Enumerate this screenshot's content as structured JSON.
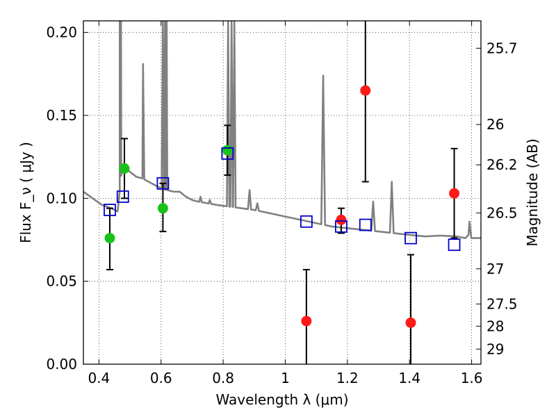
{
  "chart_data": {
    "type": "scatter",
    "xlabel": "Wavelength  λ (μm)",
    "ylabel": "Flux  F_ν  ( μJy )",
    "y2label": "Magnitude (AB)",
    "xlim": [
      0.35,
      1.63
    ],
    "ylim": [
      0.0,
      0.207
    ],
    "grid": true,
    "x_ticks": [
      0.4,
      0.6,
      0.8,
      1.0,
      1.2,
      1.4,
      1.6
    ],
    "x_tick_labels": [
      "0.4",
      "0.6",
      "0.8",
      "1",
      "1.2",
      "1.4",
      "1.6"
    ],
    "y_ticks": [
      0.0,
      0.05,
      0.1,
      0.15,
      0.2
    ],
    "y_tick_labels": [
      "0.00",
      "0.05",
      "0.10",
      "0.15",
      "0.20"
    ],
    "mag_ticks": [
      {
        "flux": 0.1905,
        "label": "25.7"
      },
      {
        "flux": 0.1445,
        "label": "26"
      },
      {
        "flux": 0.1202,
        "label": "26.2"
      },
      {
        "flux": 0.0912,
        "label": "26.5"
      },
      {
        "flux": 0.0575,
        "label": "27"
      },
      {
        "flux": 0.0363,
        "label": "27.5"
      },
      {
        "flux": 0.0229,
        "label": "28"
      },
      {
        "flux": 0.0091,
        "label": "29"
      }
    ],
    "series": [
      {
        "name": "green detections",
        "color": "#19c219",
        "marker": "circle",
        "points": [
          {
            "x": 0.435,
            "y": 0.076,
            "ylo": 0.057,
            "yhi": 0.094
          },
          {
            "x": 0.482,
            "y": 0.118,
            "ylo": 0.1,
            "yhi": 0.136
          },
          {
            "x": 0.606,
            "y": 0.094,
            "ylo": 0.08,
            "yhi": 0.109
          },
          {
            "x": 0.814,
            "y": 0.129,
            "ylo": 0.114,
            "yhi": 0.144
          }
        ]
      },
      {
        "name": "red detections",
        "color": "#ff1a1a",
        "marker": "circle",
        "points": [
          {
            "x": 1.068,
            "y": 0.026,
            "ylo": 0.0,
            "yhi": 0.057
          },
          {
            "x": 1.18,
            "y": 0.087,
            "ylo": 0.079,
            "yhi": 0.094
          },
          {
            "x": 1.258,
            "y": 0.165,
            "ylo": 0.11,
            "yhi": 0.207
          },
          {
            "x": 1.404,
            "y": 0.025,
            "ylo": 0.0,
            "yhi": 0.066
          },
          {
            "x": 1.544,
            "y": 0.103,
            "ylo": 0.076,
            "yhi": 0.13
          }
        ]
      },
      {
        "name": "model photometry",
        "color": "#0000cc",
        "marker": "open-square",
        "points": [
          {
            "x": 0.435,
            "y": 0.093
          },
          {
            "x": 0.477,
            "y": 0.101
          },
          {
            "x": 0.606,
            "y": 0.109
          },
          {
            "x": 0.814,
            "y": 0.127
          },
          {
            "x": 1.068,
            "y": 0.086
          },
          {
            "x": 1.18,
            "y": 0.083
          },
          {
            "x": 1.258,
            "y": 0.084
          },
          {
            "x": 1.404,
            "y": 0.076
          },
          {
            "x": 1.544,
            "y": 0.072
          }
        ]
      }
    ],
    "spectrum": {
      "name": "model SED",
      "color": "#808080",
      "continuum": [
        [
          0.35,
          0.104
        ],
        [
          0.38,
          0.1
        ],
        [
          0.41,
          0.096
        ],
        [
          0.44,
          0.094
        ],
        [
          0.46,
          0.092
        ],
        [
          0.475,
          0.119
        ],
        [
          0.5,
          0.116
        ],
        [
          0.52,
          0.113
        ],
        [
          0.54,
          0.112
        ],
        [
          0.56,
          0.11
        ],
        [
          0.58,
          0.108
        ],
        [
          0.6,
          0.106
        ],
        [
          0.62,
          0.105
        ],
        [
          0.64,
          0.104
        ],
        [
          0.66,
          0.104
        ],
        [
          0.68,
          0.101
        ],
        [
          0.7,
          0.099
        ],
        [
          0.72,
          0.098
        ],
        [
          0.75,
          0.097
        ],
        [
          0.78,
          0.096
        ],
        [
          0.82,
          0.095
        ],
        [
          0.86,
          0.094
        ],
        [
          0.9,
          0.093
        ],
        [
          0.95,
          0.091
        ],
        [
          1.0,
          0.089
        ],
        [
          1.05,
          0.087
        ],
        [
          1.1,
          0.085
        ],
        [
          1.15,
          0.083
        ],
        [
          1.2,
          0.082
        ],
        [
          1.25,
          0.081
        ],
        [
          1.3,
          0.08
        ],
        [
          1.35,
          0.079
        ],
        [
          1.4,
          0.078
        ],
        [
          1.45,
          0.077
        ],
        [
          1.5,
          0.0775
        ],
        [
          1.55,
          0.077
        ],
        [
          1.58,
          0.076
        ],
        [
          1.59,
          0.078
        ],
        [
          1.6,
          0.076
        ],
        [
          1.63,
          0.076
        ]
      ],
      "lines": [
        {
          "x": 0.467,
          "y": 0.207,
          "w": 0.005
        },
        {
          "x": 0.471,
          "y": 0.207,
          "w": 0.004
        },
        {
          "x": 0.542,
          "y": 0.181,
          "w": 0.004
        },
        {
          "x": 0.606,
          "y": 0.207,
          "w": 0.004
        },
        {
          "x": 0.613,
          "y": 0.207,
          "w": 0.004
        },
        {
          "x": 0.618,
          "y": 0.207,
          "w": 0.004
        },
        {
          "x": 0.816,
          "y": 0.207,
          "w": 0.004
        },
        {
          "x": 0.827,
          "y": 0.207,
          "w": 0.004
        },
        {
          "x": 0.836,
          "y": 0.207,
          "w": 0.004
        },
        {
          "x": 0.727,
          "y": 0.101,
          "w": 0.004
        },
        {
          "x": 0.757,
          "y": 0.099,
          "w": 0.004
        },
        {
          "x": 0.885,
          "y": 0.105,
          "w": 0.005
        },
        {
          "x": 0.91,
          "y": 0.097,
          "w": 0.005
        },
        {
          "x": 1.122,
          "y": 0.174,
          "w": 0.006
        },
        {
          "x": 1.283,
          "y": 0.098,
          "w": 0.006
        },
        {
          "x": 1.343,
          "y": 0.11,
          "w": 0.006
        },
        {
          "x": 1.593,
          "y": 0.086,
          "w": 0.006
        }
      ]
    }
  }
}
